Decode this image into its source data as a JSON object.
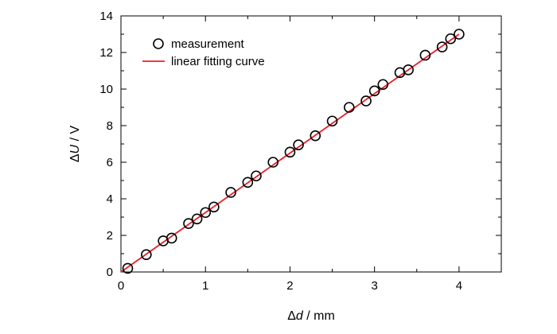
{
  "chart_data": {
    "type": "scatter",
    "title": "",
    "xlabel": {
      "symbol": "Δ",
      "var": "d",
      "unit": " / mm"
    },
    "ylabel": {
      "symbol": "Δ",
      "var": "U",
      "unit": " / V"
    },
    "xlim": [
      0,
      4.5
    ],
    "ylim": [
      0,
      14
    ],
    "xticks": [
      "0",
      "1",
      "2",
      "3",
      "4"
    ],
    "yticks": [
      "0",
      "2",
      "4",
      "6",
      "8",
      "10",
      "12",
      "14"
    ],
    "legend_position": "top-left",
    "grid": false,
    "series": [
      {
        "name": "measurement",
        "kind": "marker",
        "marker": "open-circle",
        "color": "#000000",
        "x": [
          0.08,
          0.3,
          0.5,
          0.6,
          0.8,
          0.9,
          1.0,
          1.1,
          1.3,
          1.5,
          1.6,
          1.8,
          2.0,
          2.1,
          2.3,
          2.5,
          2.7,
          2.9,
          3.0,
          3.1,
          3.3,
          3.4,
          3.6,
          3.8,
          3.9,
          4.0
        ],
        "y": [
          0.2,
          0.95,
          1.7,
          1.85,
          2.65,
          2.9,
          3.25,
          3.55,
          4.35,
          4.9,
          5.25,
          6.0,
          6.55,
          6.95,
          7.45,
          8.25,
          9.0,
          9.35,
          9.9,
          10.25,
          10.9,
          11.05,
          11.85,
          12.3,
          12.75,
          13.0
        ]
      },
      {
        "name": "linear fitting curve",
        "kind": "line",
        "color": "#e8202a",
        "x": [
          0.0,
          4.0
        ],
        "y": [
          0.0,
          13.0
        ]
      }
    ]
  }
}
